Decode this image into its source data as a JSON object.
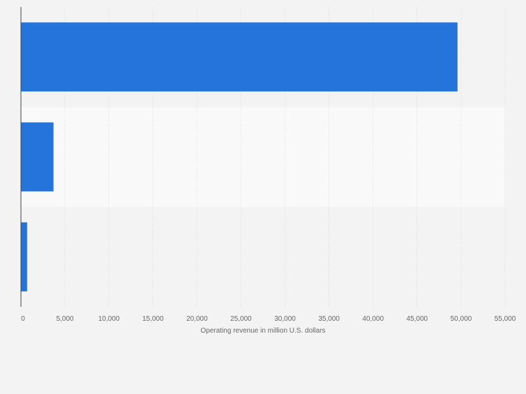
{
  "chart_data": {
    "type": "bar",
    "orientation": "horizontal",
    "categories": [
      "",
      "",
      ""
    ],
    "values": [
      49600,
      3700,
      700
    ],
    "xlabel": "Operating revenue in million U.S. dollars",
    "ylabel": "",
    "xlim": [
      0,
      55000
    ],
    "ticks": [
      0,
      5000,
      10000,
      15000,
      20000,
      25000,
      30000,
      35000,
      40000,
      45000,
      50000,
      55000
    ],
    "tick_labels": [
      "0",
      "5,000",
      "10,000",
      "15,000",
      "20,000",
      "25,000",
      "30,000",
      "35,000",
      "40,000",
      "45,000",
      "50,000",
      "55,000"
    ],
    "grid": true,
    "legend": "none",
    "colors": {
      "bar": "#2574db",
      "band_alt": "#f9f9f9",
      "background": "#f3f3f3",
      "grid": "#dcdcdc",
      "axis": "#444444",
      "tick_text": "#666666"
    }
  }
}
